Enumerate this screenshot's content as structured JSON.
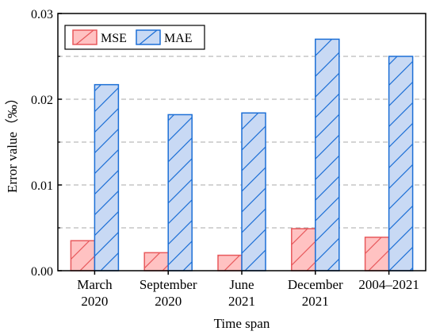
{
  "chart_data": {
    "type": "bar",
    "xlabel": "Time span",
    "ylabel": "Error value（‰）",
    "categories": [
      [
        "March",
        "2020"
      ],
      [
        "September",
        "2020"
      ],
      [
        "June",
        "2021"
      ],
      [
        "December",
        "2021"
      ],
      [
        "2004–2021"
      ]
    ],
    "series": [
      {
        "name": "MSE",
        "values": [
          0.0035,
          0.0021,
          0.0018,
          0.0049,
          0.0039
        ],
        "fill": "#ffc2c2",
        "stroke": "#e8595c"
      },
      {
        "name": "MAE",
        "values": [
          0.0217,
          0.0182,
          0.0184,
          0.027,
          0.025
        ],
        "fill": "#c8d9f4",
        "stroke": "#1c6fd6"
      }
    ],
    "ylim": [
      0,
      0.03
    ],
    "yticks": [
      "0.00",
      "0.01",
      "0.02",
      "0.03"
    ],
    "grid": true,
    "legend_position": "top-left",
    "hatch": "diagonal"
  }
}
